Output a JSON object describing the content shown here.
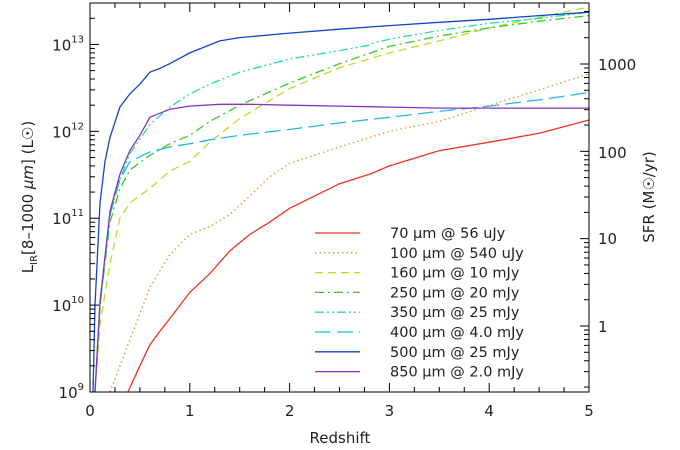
{
  "chart_data": {
    "type": "line",
    "xlabel": "Redshift",
    "ylabel": "L_IR[8-1000 μm] (L☉)",
    "ylabel_right": "SFR (M☉/yr)",
    "xlim": [
      0,
      5
    ],
    "ylim": [
      1000000000.0,
      30000000000000.0
    ],
    "yscale": "log",
    "x_ticks": [
      "0",
      "1",
      "2",
      "3",
      "4",
      "5"
    ],
    "y_ticks": [
      {
        "base": "10",
        "exp": "9"
      },
      {
        "base": "10",
        "exp": "10"
      },
      {
        "base": "10",
        "exp": "11"
      },
      {
        "base": "10",
        "exp": "12"
      },
      {
        "base": "10",
        "exp": "13"
      }
    ],
    "y_right_ticks": [
      "1",
      "10",
      "100",
      "1000"
    ],
    "legend_position": "bottom-right",
    "grid": false,
    "series": [
      {
        "name": "70 μm @ 56 uJy",
        "color": "#ee3322",
        "dash": "solid",
        "x": [
          0.38,
          0.5,
          0.6,
          0.7,
          0.8,
          1.0,
          1.2,
          1.4,
          1.6,
          1.8,
          2.0,
          2.5,
          2.8,
          3.0,
          3.5,
          4.0,
          4.5,
          5.0
        ],
        "y": [
          1000000000.0,
          2000000000.0,
          3500000000.0,
          5000000000.0,
          7000000000.0,
          14000000000.0,
          23000000000.0,
          42000000000.0,
          65000000000.0,
          90000000000.0,
          130000000000.0,
          250000000000.0,
          320000000000.0,
          400000000000.0,
          600000000000.0,
          750000000000.0,
          950000000000.0,
          1350000000000.0
        ]
      },
      {
        "name": "100 μm @ 540 uJy",
        "color": "#e8902a",
        "dash": "dotted",
        "x": [
          0.2,
          0.4,
          0.6,
          0.8,
          1.0,
          1.2,
          1.4,
          1.6,
          1.8,
          2.0,
          2.5,
          3.0,
          3.5,
          4.0,
          4.5,
          5.0
        ],
        "y": [
          1000000000.0,
          4000000000.0,
          16000000000.0,
          38000000000.0,
          65000000000.0,
          80000000000.0,
          110000000000.0,
          180000000000.0,
          300000000000.0,
          430000000000.0,
          660000000000.0,
          1000000000000.0,
          1300000000000.0,
          2000000000000.0,
          3000000000000.0,
          4600000000000.0
        ]
      },
      {
        "name": "160 μm @ 10 mJy",
        "color": "#bbdd22",
        "dash": "dashed",
        "x": [
          0.05,
          0.1,
          0.2,
          0.3,
          0.4,
          0.6,
          0.8,
          1.0,
          1.2,
          1.5,
          2.0,
          2.5,
          3.0,
          3.5,
          4.0,
          4.5,
          5.0
        ],
        "y": [
          1000000000.0,
          6000000000.0,
          30000000000.0,
          100000000000.0,
          150000000000.0,
          220000000000.0,
          350000000000.0,
          450000000000.0,
          750000000000.0,
          1400000000000.0,
          3100000000000.0,
          5400000000000.0,
          8000000000000.0,
          11000000000000.0,
          15500000000000.0,
          20500000000000.0,
          27000000000000.0
        ]
      },
      {
        "name": "250 μm @ 20 mJy",
        "color": "#33cc22",
        "dash": "dashdot",
        "x": [
          0.05,
          0.1,
          0.2,
          0.3,
          0.4,
          0.6,
          0.8,
          1.0,
          1.2,
          1.5,
          2.0,
          2.5,
          3.0,
          3.5,
          4.0,
          4.5,
          5.0
        ],
        "y": [
          1000000000.0,
          10000000000.0,
          90000000000.0,
          220000000000.0,
          360000000000.0,
          530000000000.0,
          720000000000.0,
          900000000000.0,
          1300000000000.0,
          2000000000000.0,
          3600000000000.0,
          6000000000000.0,
          9500000000000.0,
          12500000000000.0,
          15500000000000.0,
          18500000000000.0,
          21500000000000.0
        ]
      },
      {
        "name": "350 μm @ 25 mJy",
        "color": "#22ddaa",
        "dash": "dashdotdot",
        "x": [
          0.05,
          0.1,
          0.2,
          0.3,
          0.4,
          0.6,
          0.8,
          1.0,
          1.2,
          1.5,
          2.0,
          2.5,
          2.8,
          2.85,
          3.0,
          3.5,
          4.0,
          4.5,
          5.0
        ],
        "y": [
          1000000000.0,
          10000000000.0,
          110000000000.0,
          280000000000.0,
          550000000000.0,
          1200000000000.0,
          1900000000000.0,
          2700000000000.0,
          3500000000000.0,
          4800000000000.0,
          6800000000000.0,
          8500000000000.0,
          9800000000000.0,
          10500000000000.0,
          11500000000000.0,
          14500000000000.0,
          17500000000000.0,
          20000000000000.0,
          23500000000000.0
        ]
      },
      {
        "name": "400 μm @ 4.0 mJy",
        "color": "#22bbdd",
        "dash": "longdash",
        "x": [
          0.05,
          0.1,
          0.2,
          0.3,
          0.4,
          0.6,
          0.8,
          1.0,
          1.2,
          1.5,
          2.0,
          2.5,
          3.0,
          3.5,
          4.0,
          4.5,
          5.0
        ],
        "y": [
          1000000000.0,
          10000000000.0,
          110000000000.0,
          280000000000.0,
          450000000000.0,
          580000000000.0,
          660000000000.0,
          720000000000.0,
          800000000000.0,
          900000000000.0,
          1050000000000.0,
          1250000000000.0,
          1450000000000.0,
          1700000000000.0,
          1950000000000.0,
          2300000000000.0,
          2800000000000.0
        ]
      },
      {
        "name": "500 μm @ 25 mJy",
        "color": "#1144cc",
        "dash": "solid",
        "x": [
          0.03,
          0.05,
          0.1,
          0.15,
          0.2,
          0.3,
          0.4,
          0.5,
          0.6,
          0.7,
          0.8,
          1.0,
          1.3,
          1.5,
          2.0,
          2.5,
          3.0,
          3.5,
          4.0,
          4.5,
          5.0
        ],
        "y": [
          1000000000.0,
          10000000000.0,
          150000000000.0,
          450000000000.0,
          850000000000.0,
          1900000000000.0,
          2700000000000.0,
          3500000000000.0,
          4800000000000.0,
          5300000000000.0,
          6000000000000.0,
          8000000000000.0,
          11000000000000.0,
          12000000000000.0,
          13500000000000.0,
          15000000000000.0,
          16500000000000.0,
          18000000000000.0,
          19500000000000.0,
          21500000000000.0,
          23500000000000.0
        ]
      },
      {
        "name": "850 μm @ 2.0 mJy",
        "color": "#8833bb",
        "dash": "solid",
        "x": [
          0.05,
          0.1,
          0.2,
          0.3,
          0.4,
          0.5,
          0.6,
          0.8,
          1.0,
          1.3,
          1.6,
          2.0,
          2.5,
          3.0,
          3.5,
          4.0,
          4.5,
          5.0
        ],
        "y": [
          1000000000.0,
          11000000000.0,
          120000000000.0,
          320000000000.0,
          600000000000.0,
          900000000000.0,
          1450000000000.0,
          1800000000000.0,
          1950000000000.0,
          2050000000000.0,
          2050000000000.0,
          2000000000000.0,
          1950000000000.0,
          1900000000000.0,
          1850000000000.0,
          1850000000000.0,
          1850000000000.0,
          1850000000000.0
        ]
      }
    ]
  }
}
